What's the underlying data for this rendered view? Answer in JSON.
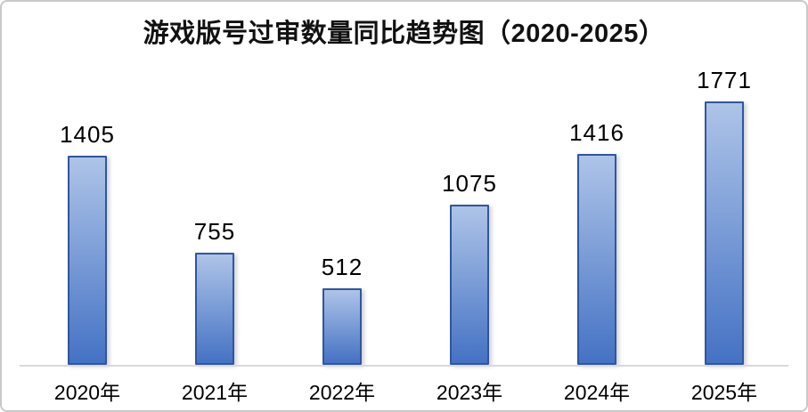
{
  "chart_data": {
    "type": "bar",
    "title": "游戏版号过审数量同比趋势图（2020-2025）",
    "categories": [
      "2020年",
      "2021年",
      "2022年",
      "2023年",
      "2024年",
      "2025年"
    ],
    "values": [
      1405,
      755,
      512,
      1075,
      1416,
      1771
    ],
    "data_labels": [
      "1405",
      "755",
      "512",
      "1075",
      "1416",
      "1771"
    ],
    "xlabel": "",
    "ylabel": "",
    "ylim": [
      0,
      1850
    ],
    "grid": false,
    "legend_position": "none",
    "colors": {
      "bar_gradient_top": "#aec4e8",
      "bar_gradient_bottom": "#4472c4",
      "bar_border": "#31569c",
      "axis_line": "#d9d9d9",
      "text": "#000000",
      "frame_border": "#c9c9c9",
      "background": "#ffffff"
    }
  }
}
